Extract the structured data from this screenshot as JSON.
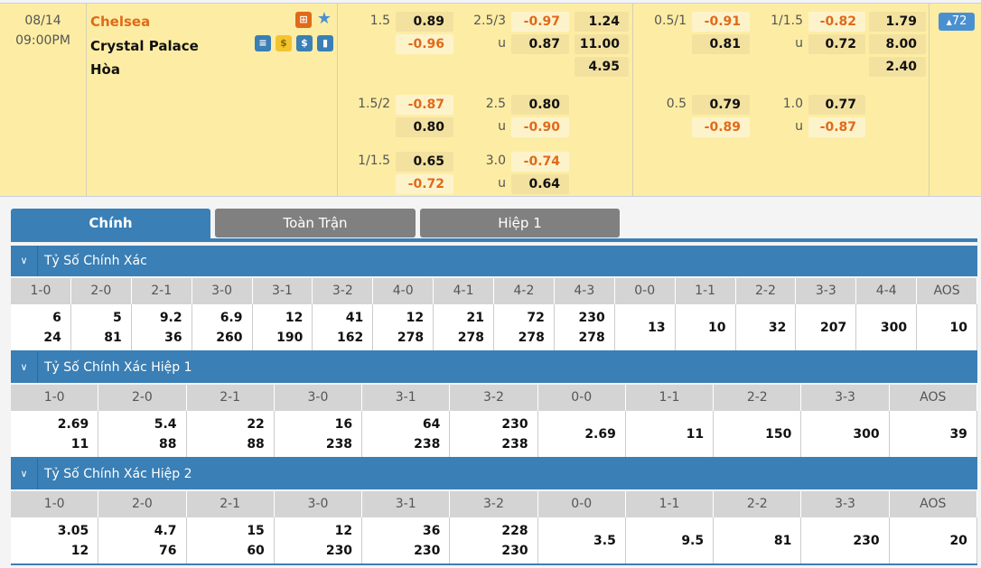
{
  "match": {
    "date": "08/14",
    "time": "09:00PM",
    "home": "Chelsea",
    "away": "Crystal Palace",
    "draw": "Hòa",
    "more_count": "72",
    "home_color": "#e06a1b"
  },
  "icons": [
    "lineup-icon",
    "star-icon",
    "stats-s-icon",
    "coin-icon",
    "dollar-icon",
    "chart-bar-icon"
  ],
  "odds": {
    "g1": [
      [
        "1.5",
        "0.89",
        "",
        "-0.96"
      ],
      [
        "2.5/3",
        "-0.97",
        "u",
        "0.87"
      ],
      [
        "1.24",
        "11.00",
        "4.95"
      ],
      [
        "0.5/1",
        "-0.91",
        "",
        "0.81"
      ],
      [
        "1/1.5",
        "-0.82",
        "u",
        "0.72"
      ],
      [
        "1.79",
        "8.00",
        "2.40"
      ]
    ],
    "g2": [
      [
        "1.5/2",
        "-0.87",
        "",
        "0.80"
      ],
      [
        "2.5",
        "0.80",
        "u",
        "-0.90"
      ],
      [
        "0.5",
        "0.79",
        "",
        "-0.89"
      ],
      [
        "1.0",
        "0.77",
        "u",
        "-0.87"
      ]
    ],
    "g3": [
      [
        "1/1.5",
        "0.65",
        "",
        "-0.72"
      ],
      [
        "3.0",
        "-0.74",
        "u",
        "0.64"
      ]
    ]
  },
  "tabs": [
    "Chính",
    "Toàn Trận",
    "Hiệp 1"
  ],
  "sections": [
    {
      "title": "Tỷ Số Chính Xác",
      "headers": [
        "1-0",
        "2-0",
        "2-1",
        "3-0",
        "3-1",
        "3-2",
        "4-0",
        "4-1",
        "4-2",
        "4-3",
        "0-0",
        "1-1",
        "2-2",
        "3-3",
        "4-4",
        "AOS"
      ],
      "values": [
        [
          "6",
          "24"
        ],
        [
          "5",
          "81"
        ],
        [
          "9.2",
          "36"
        ],
        [
          "6.9",
          "260"
        ],
        [
          "12",
          "190"
        ],
        [
          "41",
          "162"
        ],
        [
          "12",
          "278"
        ],
        [
          "21",
          "278"
        ],
        [
          "72",
          "278"
        ],
        [
          "230",
          "278"
        ],
        [
          "13"
        ],
        [
          "10"
        ],
        [
          "32"
        ],
        [
          "207"
        ],
        [
          "300"
        ],
        [
          "10"
        ]
      ]
    },
    {
      "title": "Tỷ Số Chính Xác Hiệp 1",
      "headers": [
        "1-0",
        "2-0",
        "2-1",
        "3-0",
        "3-1",
        "3-2",
        "0-0",
        "1-1",
        "2-2",
        "3-3",
        "AOS"
      ],
      "values": [
        [
          "2.69",
          "11"
        ],
        [
          "5.4",
          "88"
        ],
        [
          "22",
          "88"
        ],
        [
          "16",
          "238"
        ],
        [
          "64",
          "238"
        ],
        [
          "230",
          "238"
        ],
        [
          "2.69"
        ],
        [
          "11"
        ],
        [
          "150"
        ],
        [
          "300"
        ],
        [
          "39"
        ]
      ]
    },
    {
      "title": "Tỷ Số Chính Xác Hiệp 2",
      "headers": [
        "1-0",
        "2-0",
        "2-1",
        "3-0",
        "3-1",
        "3-2",
        "0-0",
        "1-1",
        "2-2",
        "3-3",
        "AOS"
      ],
      "values": [
        [
          "3.05",
          "12"
        ],
        [
          "4.7",
          "76"
        ],
        [
          "15",
          "60"
        ],
        [
          "12",
          "230"
        ],
        [
          "36",
          "230"
        ],
        [
          "228",
          "230"
        ],
        [
          "3.5"
        ],
        [
          "9.5"
        ],
        [
          "81"
        ],
        [
          "230"
        ],
        [
          "20"
        ]
      ]
    }
  ]
}
